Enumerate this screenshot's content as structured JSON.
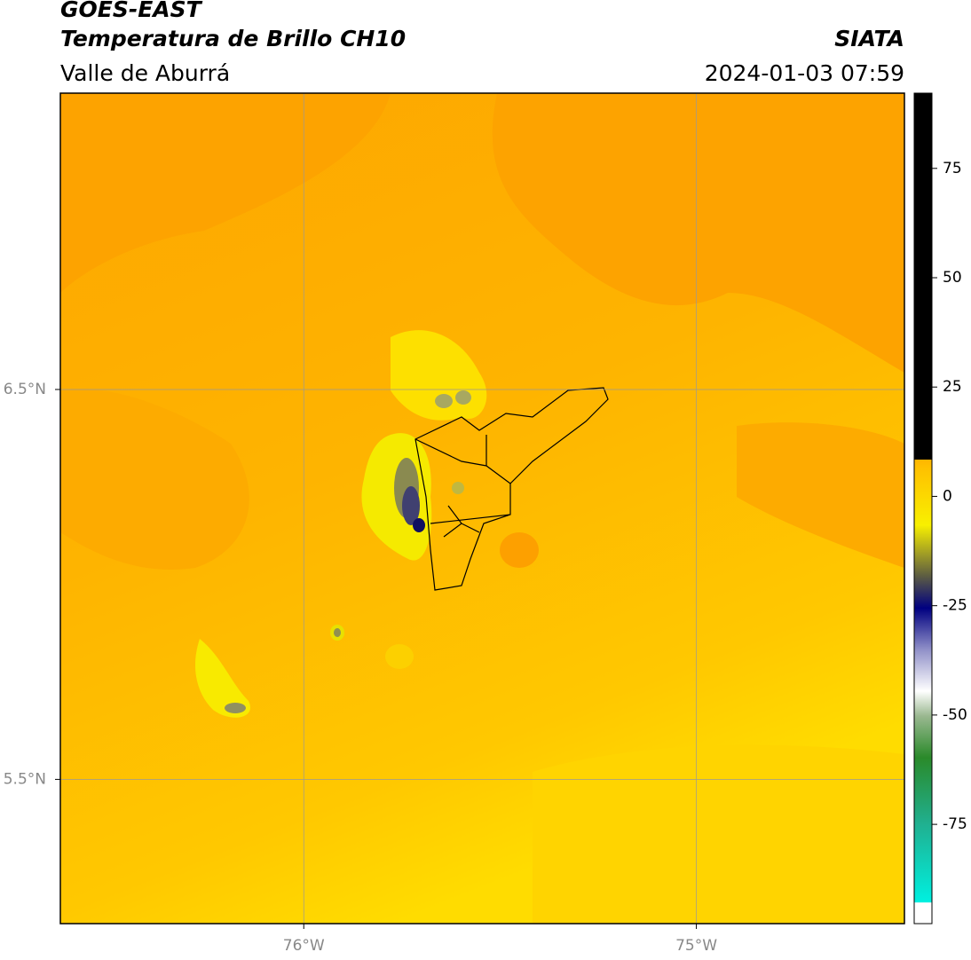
{
  "header": {
    "title": "GOES-EAST",
    "subtitle": "Temperatura de Brillo CH10",
    "region": "Valle de Aburrá",
    "source": "SIATA",
    "datetime": "2024-01-03 07:59"
  },
  "map": {
    "xlim": [
      -76.62,
      -74.47
    ],
    "ylim": [
      5.13,
      7.26
    ],
    "xticks": [
      {
        "value": -76,
        "label": "76°W"
      },
      {
        "value": -75,
        "label": "75°W"
      }
    ],
    "yticks": [
      {
        "value": 6.5,
        "label": "6.5°N"
      },
      {
        "value": 5.5,
        "label": "5.5°N"
      }
    ]
  },
  "colorbar": {
    "lim": [
      -97.7,
      92.2
    ],
    "ticks": [
      75,
      50,
      25,
      0,
      -25,
      -50,
      -75
    ]
  }
}
